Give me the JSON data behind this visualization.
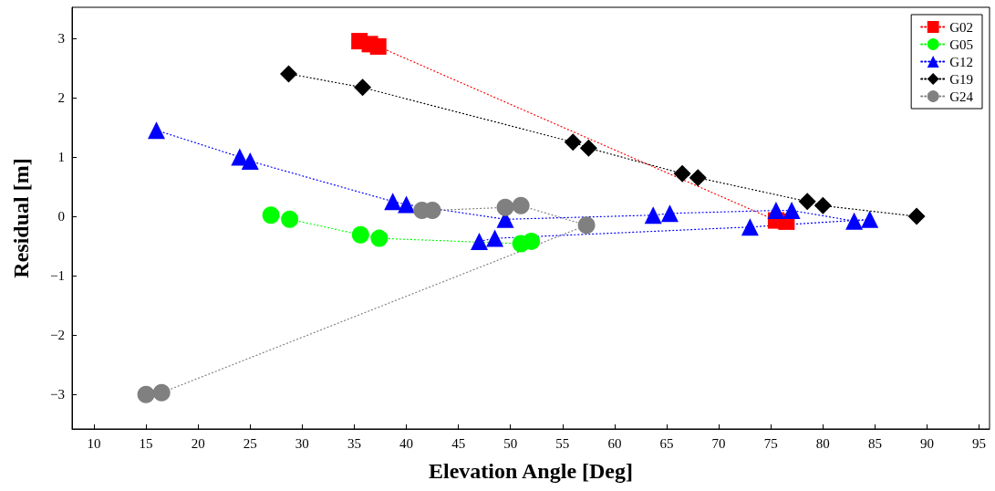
{
  "chart_data": {
    "type": "line",
    "xlabel": "Elevation Angle [Deg]",
    "ylabel": "Residual [m]",
    "xlim": [
      7.9,
      96
    ],
    "ylim": [
      -3.58,
      3.52
    ],
    "xticks": [
      10,
      15,
      20,
      25,
      30,
      35,
      40,
      45,
      50,
      55,
      60,
      65,
      70,
      75,
      80,
      85,
      90,
      95
    ],
    "yticks": [
      -3,
      -2,
      -1,
      0,
      1,
      2,
      3
    ],
    "grid": false,
    "legend": "top right",
    "line_style": "dotted",
    "series": [
      {
        "name": "G02",
        "color": "#ff0000",
        "marker": "square",
        "x": [
          35.5,
          36.5,
          37.3,
          75.5,
          76.5
        ],
        "values": [
          2.95,
          2.9,
          2.86,
          -0.07,
          -0.09
        ]
      },
      {
        "name": "G05",
        "color": "#00ff00",
        "marker": "circle",
        "x": [
          27,
          28.8,
          35.6,
          37.4,
          51,
          52
        ],
        "values": [
          0.02,
          -0.05,
          -0.31,
          -0.37,
          -0.46,
          -0.42
        ]
      },
      {
        "name": "G12",
        "color": "#0000ff",
        "marker": "triangle",
        "x": [
          16,
          24,
          25,
          38.7,
          40,
          49.5,
          63.7,
          65.3,
          75.5,
          77,
          83,
          84.5,
          73,
          48.5,
          47
        ],
        "values": [
          1.45,
          1.0,
          0.93,
          0.25,
          0.2,
          -0.05,
          0.02,
          0.05,
          0.1,
          0.1,
          -0.08,
          -0.05,
          -0.18,
          -0.37,
          -0.42
        ]
      },
      {
        "name": "G19",
        "color": "#000000",
        "marker": "diamond",
        "x": [
          28.7,
          35.8,
          56,
          57.5,
          66.5,
          68,
          78.5,
          80,
          89
        ],
        "values": [
          2.4,
          2.17,
          1.25,
          1.15,
          0.72,
          0.65,
          0.25,
          0.18,
          0.0
        ]
      },
      {
        "name": "G24",
        "color": "#808080",
        "marker": "circle",
        "x": [
          41.5,
          42.5,
          49.5,
          51,
          57.3,
          16.5,
          15
        ],
        "values": [
          0.1,
          0.1,
          0.15,
          0.18,
          -0.15,
          -2.97,
          -3.0
        ]
      }
    ]
  }
}
